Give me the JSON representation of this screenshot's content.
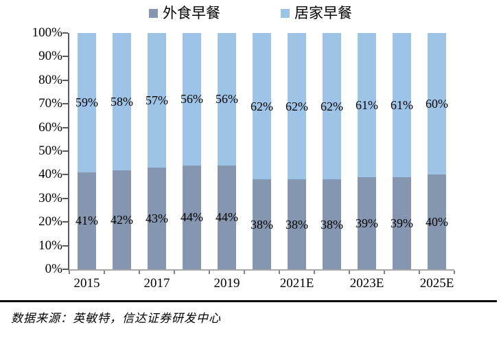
{
  "chart_data": {
    "type": "bar",
    "variant": "stacked-100",
    "title": "",
    "xlabel": "",
    "ylabel": "",
    "categories_tick_labels": [
      "2015",
      "",
      "2017",
      "",
      "2019",
      "",
      "2021E",
      "",
      "2023E",
      "",
      "2025E"
    ],
    "series": [
      {
        "name": "外食早餐",
        "color": "#8496B0",
        "values": [
          41,
          42,
          43,
          44,
          44,
          38,
          38,
          38,
          39,
          39,
          40
        ]
      },
      {
        "name": "居家早餐",
        "color": "#9DC3E6",
        "values": [
          59,
          58,
          57,
          56,
          56,
          62,
          62,
          62,
          61,
          61,
          60
        ]
      }
    ],
    "data_label_suffix": "%",
    "y_axis": {
      "min": 0,
      "max": 100,
      "step": 10,
      "tick_labels": [
        "0%",
        "10%",
        "20%",
        "30%",
        "40%",
        "50%",
        "60%",
        "70%",
        "80%",
        "90%",
        "100%"
      ]
    },
    "legend_position": "top",
    "grid": "off"
  },
  "source": {
    "text": "数据来源：英敏特，信达证券研发中心"
  }
}
